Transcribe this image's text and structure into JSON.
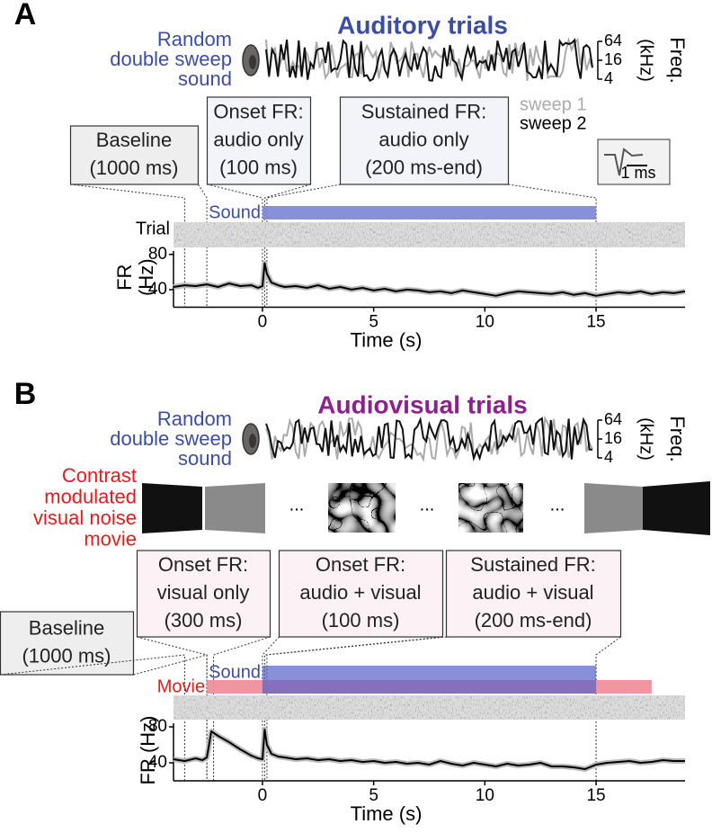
{
  "chart_data": [
    {
      "type": "line",
      "panel_label": "A",
      "title": "Auditory trials",
      "title_color": "#3c4ea3",
      "sound_label": [
        "Random",
        "double sweep",
        "sound"
      ],
      "sound_label_color": "#3c4ea3",
      "freq_ticks": [
        4,
        16,
        64
      ],
      "freq_label": "(kHz)",
      "freq_title": "Freq.",
      "sweep_legend": [
        {
          "name": "sweep 1",
          "color": "#aaaaaa"
        },
        {
          "name": "sweep 2",
          "color": "#000000"
        }
      ],
      "boxes": [
        {
          "lines": [
            "Baseline",
            "(1000 ms)"
          ],
          "window": [
            -3.5,
            -2.5
          ]
        },
        {
          "lines": [
            "Onset FR:",
            "audio only",
            "(100 ms)"
          ],
          "window": [
            0,
            0.1
          ]
        },
        {
          "lines": [
            "Sustained FR:",
            "audio only",
            "(200 ms-end)"
          ],
          "window": [
            0.2,
            15
          ]
        }
      ],
      "scale_bar_label": "1 ms",
      "stimuli": [
        {
          "name": "Sound",
          "color": "#7b84d6",
          "label_color": "#3c4ea3",
          "start": 0,
          "end": 15
        }
      ],
      "raster_label": "Trial",
      "x": [
        -4,
        -3.5,
        -3,
        -2.5,
        -2,
        -1.5,
        -1,
        -0.5,
        -0.2,
        0,
        0.1,
        0.2,
        0.4,
        0.7,
        1,
        1.5,
        2,
        2.5,
        3,
        3.5,
        4,
        4.5,
        5,
        5.5,
        6,
        6.5,
        7,
        7.5,
        8,
        8.5,
        9,
        9.5,
        10,
        10.5,
        11,
        11.5,
        12,
        12.5,
        13,
        13.5,
        14,
        14.5,
        15,
        15.5,
        16,
        16.5,
        17,
        17.5,
        18,
        18.5,
        19
      ],
      "values": [
        43,
        45,
        44,
        46,
        43,
        47,
        44,
        45,
        42,
        44,
        70,
        58,
        48,
        45,
        43,
        44,
        42,
        45,
        41,
        43,
        40,
        42,
        39,
        41,
        38,
        40,
        39,
        37,
        38,
        36,
        39,
        37,
        35,
        33,
        36,
        38,
        37,
        36,
        35,
        37,
        34,
        36,
        33,
        35,
        37,
        36,
        38,
        35,
        37,
        36,
        38
      ],
      "color": "#000000",
      "xlim": [
        -4,
        19
      ],
      "xticks": [
        0,
        5,
        10,
        15
      ],
      "ylim": [
        20,
        88
      ],
      "yticks": [
        40,
        80
      ],
      "xlabel": "Time (s)",
      "ylabel": [
        "FR",
        "(Hz)"
      ]
    },
    {
      "type": "line",
      "panel_label": "B",
      "title": "Audiovisual trials",
      "title_color": "#8e1f8e",
      "sound_label": [
        "Random",
        "double sweep",
        "sound"
      ],
      "sound_label_color": "#3c4ea3",
      "freq_ticks": [
        4,
        16,
        64
      ],
      "freq_label": "(kHz)",
      "freq_title": "Freq.",
      "movie_label": [
        "Contrast",
        "modulated",
        "visual noise",
        "movie"
      ],
      "movie_label_color": "#e41a1c",
      "frame_ellipsis": "...",
      "boxes": [
        {
          "lines": [
            "Baseline",
            "(1000 ms)"
          ],
          "window": [
            -3.5,
            -2.5
          ]
        },
        {
          "lines": [
            "Onset FR:",
            "visual only",
            "(300 ms)"
          ],
          "window": [
            -2.5,
            -2.2
          ]
        },
        {
          "lines": [
            "Onset FR:",
            "audio + visual",
            "(100 ms)"
          ],
          "window": [
            0,
            0.1
          ]
        },
        {
          "lines": [
            "Sustained FR:",
            "audio + visual",
            "(200 ms-end)"
          ],
          "window": [
            0.2,
            15
          ]
        }
      ],
      "stimuli": [
        {
          "name": "Movie",
          "color": "#f08a96",
          "label_color": "#e41a1c",
          "start": -2.5,
          "end": 17.5
        },
        {
          "name": "Sound",
          "color": "#5561c8",
          "label_color": "#3c4ea3",
          "start": 0,
          "end": 15
        }
      ],
      "x": [
        -4,
        -3.5,
        -3,
        -2.7,
        -2.5,
        -2.3,
        -2,
        -1.5,
        -1,
        -0.5,
        -0.2,
        0,
        0.1,
        0.2,
        0.4,
        0.7,
        1,
        1.5,
        2,
        2.5,
        3,
        3.5,
        4,
        4.5,
        5,
        5.5,
        6,
        6.5,
        7,
        7.5,
        8,
        8.5,
        9,
        9.5,
        10,
        10.5,
        11,
        11.5,
        12,
        12.5,
        13,
        13.5,
        14,
        14.5,
        15,
        15.5,
        16,
        16.5,
        17,
        17.5,
        18,
        18.5,
        19
      ],
      "values": [
        44,
        42,
        45,
        43,
        46,
        75,
        70,
        63,
        55,
        48,
        45,
        44,
        77,
        60,
        50,
        47,
        46,
        44,
        45,
        43,
        44,
        42,
        43,
        41,
        42,
        40,
        41,
        39,
        40,
        38,
        42,
        39,
        37,
        40,
        38,
        36,
        39,
        37,
        38,
        40,
        36,
        36,
        35,
        33,
        38,
        40,
        41,
        42,
        40,
        41,
        43,
        42,
        42
      ],
      "color": "#000000",
      "xlim": [
        -4,
        19
      ],
      "xticks": [
        0,
        5,
        10,
        15
      ],
      "ylim": [
        20,
        88
      ],
      "yticks": [
        40,
        80
      ],
      "xlabel": "Time (s)",
      "ylabel": [
        "FR (Hz)"
      ]
    }
  ]
}
